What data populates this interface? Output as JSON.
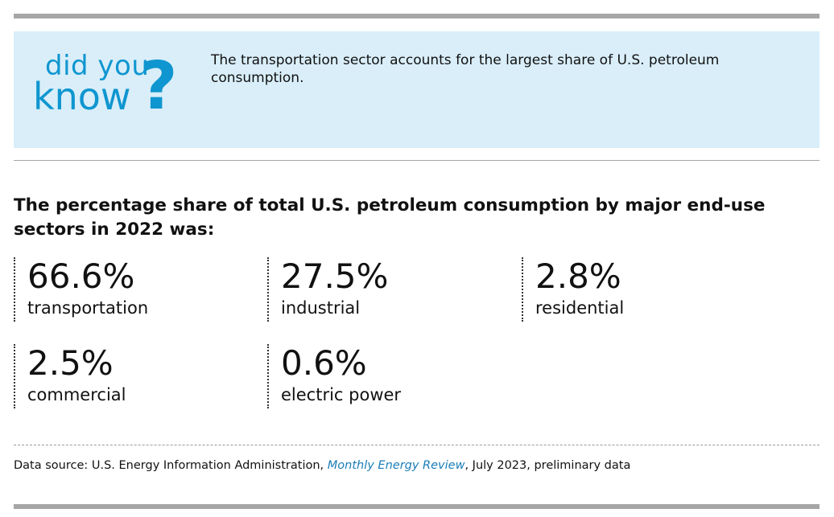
{
  "callout": {
    "logo_line1": "did you",
    "logo_line2": "know",
    "logo_mark": "?",
    "text": "The transportation sector accounts for the largest share of U.S. petroleum consumption."
  },
  "heading": "The percentage share of total U.S. petroleum consumption by major end-use sectors in 2022 was:",
  "stats": [
    {
      "value": "66.6%",
      "label": "transportation"
    },
    {
      "value": "27.5%",
      "label": "industrial"
    },
    {
      "value": "2.8%",
      "label": "residential"
    },
    {
      "value": "2.5%",
      "label": "commercial"
    },
    {
      "value": "0.6%",
      "label": "electric power"
    }
  ],
  "source": {
    "prefix": "Data source: U.S. Energy Information Administration, ",
    "link_text": "Monthly Energy Review",
    "suffix": ", July 2023, preliminary data"
  },
  "colors": {
    "accent": "#0f96d0",
    "callout_bg": "#d9eef9",
    "link": "#1a7db8",
    "rule": "#a6a6a6"
  }
}
